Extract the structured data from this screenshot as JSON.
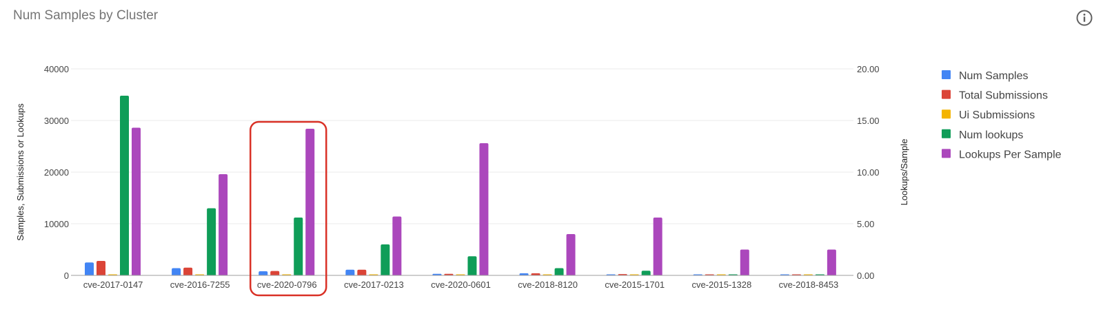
{
  "header": {
    "title": "Num Samples by Cluster"
  },
  "icons": {
    "info": "info-icon"
  },
  "colors": {
    "num_samples": "#4285f4",
    "total_submissions": "#db4437",
    "ui_submissions": "#f4b400",
    "num_lookups": "#0f9d58",
    "lookups_per_sample": "#ab47bc",
    "highlight": "#d93025",
    "grid": "#ebebeb",
    "baseline": "#9e9e9e"
  },
  "chart_data": {
    "type": "bar",
    "title": "Num Samples by Cluster",
    "categories": [
      "cve-2017-0147",
      "cve-2016-7255",
      "cve-2020-0796",
      "cve-2017-0213",
      "cve-2020-0601",
      "cve-2018-8120",
      "cve-2015-1701",
      "cve-2015-1328",
      "cve-2018-8453"
    ],
    "highlighted_category": "cve-2020-0796",
    "left_axis": {
      "label": "Samples, Submissions or Lookups",
      "ylim": [
        0,
        40000
      ],
      "ticks": [
        "0",
        "10000",
        "20000",
        "30000",
        "40000"
      ]
    },
    "right_axis": {
      "label": "Lookups/Sample",
      "ylim": [
        0,
        20
      ],
      "ticks": [
        "0.00",
        "5.00",
        "10.00",
        "15.00",
        "20.00"
      ]
    },
    "grid": true,
    "legend_position": "right",
    "series": [
      {
        "name": "Num Samples",
        "axis": "left",
        "color": "#4285f4",
        "values": [
          2500,
          1400,
          800,
          1100,
          300,
          400,
          100,
          100,
          100
        ]
      },
      {
        "name": "Total Submissions",
        "axis": "left",
        "color": "#db4437",
        "values": [
          2800,
          1500,
          850,
          1100,
          300,
          400,
          250,
          150,
          150
        ]
      },
      {
        "name": "Ui Submissions",
        "axis": "left",
        "color": "#f4b400",
        "values": [
          150,
          100,
          100,
          80,
          150,
          50,
          50,
          50,
          50
        ]
      },
      {
        "name": "Num lookups",
        "axis": "left",
        "color": "#0f9d58",
        "values": [
          34800,
          13000,
          11200,
          6000,
          3700,
          1400,
          900,
          100,
          150
        ]
      },
      {
        "name": "Lookups Per Sample",
        "axis": "right",
        "color": "#ab47bc",
        "values": [
          14.3,
          9.8,
          14.2,
          5.7,
          12.8,
          4.0,
          5.6,
          2.5,
          2.5
        ]
      }
    ]
  }
}
